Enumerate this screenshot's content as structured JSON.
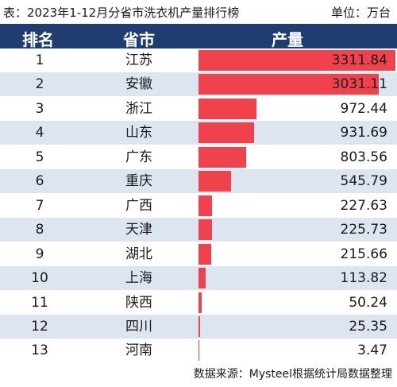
{
  "caption": {
    "title": "表：2023年1-12月分省市洗衣机产量排行榜",
    "unit": "单位：万台"
  },
  "table_headers": {
    "rank": "排名",
    "province": "省市",
    "output": "产量"
  },
  "source_note": "数据来源：Mysteel根据统计局数据整理",
  "colors": {
    "header_bg": "#1f3d70",
    "bar": "#f0424c",
    "row_alt": "#dde5f1"
  },
  "chart_data": {
    "type": "bar",
    "orientation": "horizontal",
    "title": "表：2023年1-12月分省市洗衣机产量排行榜",
    "unit": "单位：万台",
    "ranks": [
      "1",
      "2",
      "3",
      "4",
      "5",
      "6",
      "7",
      "8",
      "9",
      "10",
      "11",
      "12",
      "13"
    ],
    "categories": [
      "江苏",
      "安徽",
      "浙江",
      "山东",
      "广东",
      "重庆",
      "广西",
      "天津",
      "湖北",
      "上海",
      "陕西",
      "四川",
      "河南"
    ],
    "values": [
      3311.84,
      3031.11,
      972.44,
      931.69,
      803.56,
      545.79,
      227.63,
      225.73,
      215.66,
      113.82,
      50.24,
      25.35,
      3.47
    ],
    "value_labels": [
      "3311.84",
      "3031.11",
      "972.44",
      "931.69",
      "803.56",
      "545.79",
      "227.63",
      "225.73",
      "215.66",
      "113.82",
      "50.24",
      "25.35",
      "3.47"
    ],
    "xlim": [
      0,
      3311.84
    ]
  }
}
